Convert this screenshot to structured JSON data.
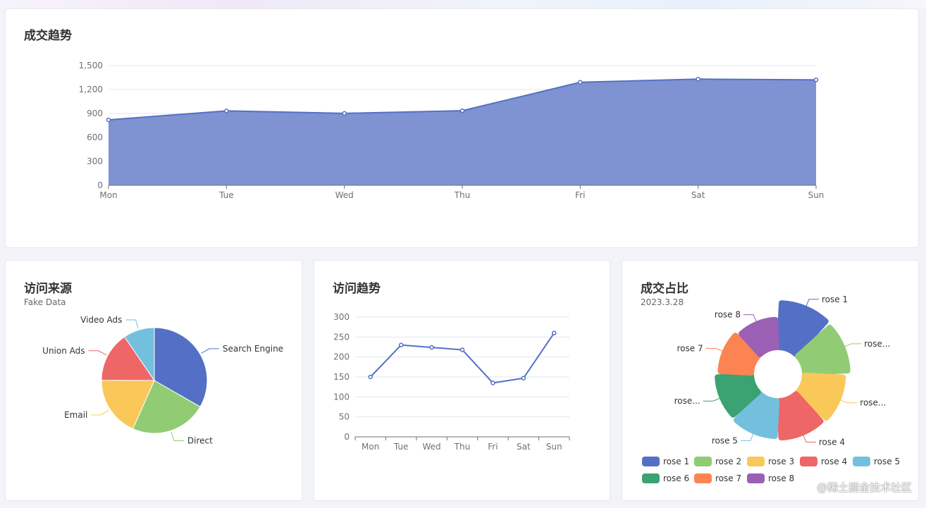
{
  "colors": {
    "primary": "#5470c6",
    "area_fill": "#7f93d2",
    "palette": [
      "#5470c6",
      "#91cc75",
      "#fac858",
      "#ee6666",
      "#73c0de",
      "#3ba272",
      "#fc8452",
      "#9a60b4"
    ]
  },
  "cards": {
    "trend": {
      "title": "成交趋势"
    },
    "source": {
      "title": "访问来源",
      "subtitle": "Fake Data"
    },
    "visits": {
      "title": "访问趋势"
    },
    "share": {
      "title": "成交占比",
      "subtitle": "2023.3.28"
    }
  },
  "watermark": "@稀土掘金技术社区",
  "chart_data": [
    {
      "id": "trend",
      "type": "area",
      "categories": [
        "Mon",
        "Tue",
        "Wed",
        "Thu",
        "Fri",
        "Sat",
        "Sun"
      ],
      "values": [
        820,
        932,
        901,
        934,
        1290,
        1330,
        1320
      ],
      "ylim": [
        0,
        1500
      ],
      "yticks": [
        0,
        300,
        600,
        900,
        1200,
        1500
      ],
      "ytick_labels": [
        "0",
        "300",
        "600",
        "900",
        "1,200",
        "1,500"
      ],
      "grid": true
    },
    {
      "id": "source",
      "type": "pie",
      "labels": [
        "Search Engine",
        "Direct",
        "Email",
        "Union Ads",
        "Video Ads"
      ],
      "values": [
        1048,
        735,
        580,
        484,
        300
      ]
    },
    {
      "id": "visits",
      "type": "line",
      "categories": [
        "Mon",
        "Tue",
        "Wed",
        "Thu",
        "Fri",
        "Sat",
        "Sun"
      ],
      "values": [
        150,
        230,
        224,
        218,
        135,
        147,
        260
      ],
      "ylim": [
        0,
        300
      ],
      "yticks": [
        0,
        50,
        100,
        150,
        200,
        250,
        300
      ],
      "grid": true
    },
    {
      "id": "share",
      "type": "pie",
      "rose": true,
      "labels": [
        "rose 1",
        "rose 2",
        "rose 3",
        "rose 4",
        "rose 5",
        "rose 6",
        "rose 7",
        "rose 8"
      ],
      "outer_labels": [
        "rose 1",
        "rose...",
        "rose...",
        "rose 4",
        "rose 5",
        "rose...",
        "rose 7",
        "rose 8"
      ],
      "values": [
        40,
        38,
        32,
        30,
        28,
        26,
        22,
        18
      ],
      "legend": [
        "rose 1",
        "rose 2",
        "rose 3",
        "rose 4",
        "rose 5",
        "rose 6",
        "rose 7",
        "rose 8"
      ],
      "legend_position": "bottom"
    }
  ]
}
